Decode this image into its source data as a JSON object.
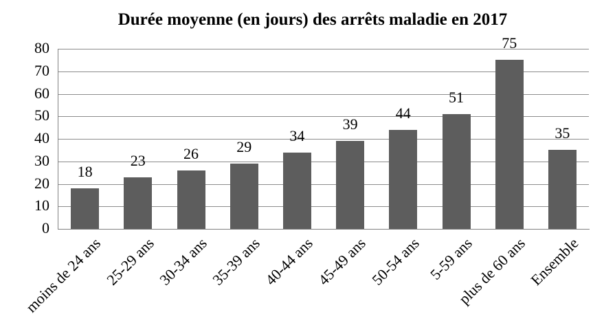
{
  "chart_data": {
    "type": "bar",
    "title": "Durée moyenne (en jours) des arrêts maladie en 2017",
    "categories": [
      "moins de 24 ans",
      "25-29 ans",
      "30-34 ans",
      "35-39 ans",
      "40-44 ans",
      "45-49 ans",
      "50-54 ans",
      "5-59 ans",
      "plus de 60 ans",
      "Ensemble"
    ],
    "values": [
      18,
      23,
      26,
      29,
      34,
      39,
      44,
      51,
      75,
      35
    ],
    "xlabel": "",
    "ylabel": "",
    "ylim": [
      0,
      80
    ],
    "yticks": [
      0,
      10,
      20,
      30,
      40,
      50,
      60,
      70,
      80
    ],
    "ytick_interval": 10,
    "grid": true,
    "legend": false,
    "data_labels": true,
    "x_label_rotation_deg": 45,
    "bar_color": "#5d5d5d",
    "gridline_color": "#8c8c8c",
    "axis_color": "#808080",
    "background_color": "#ffffff",
    "text_color": "#000000"
  }
}
